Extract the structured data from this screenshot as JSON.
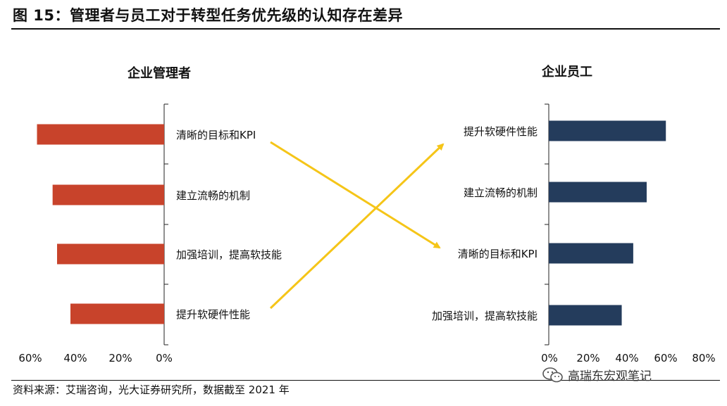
{
  "figure_title": "图 15：管理者与员工对于转型任务优先级的认知存在差异",
  "source_note": "资料来源：艾瑞咨询，光大证券研究所，数据截至 2021 年",
  "watermark": "高瑞东宏观笔记",
  "colors": {
    "manager_bar": "#c8432b",
    "employee_bar": "#243c5c",
    "arrow": "#f5c518",
    "axis": "#222222",
    "tick": "#999999"
  },
  "chart_data": [
    {
      "type": "bar",
      "orientation": "horizontal",
      "direction": "right-to-left",
      "title": "企业管理者",
      "categories": [
        "清晰的目标和KPI",
        "建立流畅的机制",
        "加强培训，提高软技能",
        "提升软硬件性能"
      ],
      "values": [
        57,
        50,
        48,
        42
      ],
      "xlim": [
        0,
        60
      ],
      "xticks": [
        "60%",
        "40%",
        "20%",
        "0%"
      ],
      "xlabel": "",
      "ylabel": ""
    },
    {
      "type": "bar",
      "orientation": "horizontal",
      "direction": "left-to-right",
      "title": "企业员工",
      "categories": [
        "提升软硬件性能",
        "建立流畅的机制",
        "清晰的目标和KPI",
        "加强培训，提高软技能"
      ],
      "values": [
        61,
        51,
        44,
        38
      ],
      "xlim": [
        0,
        80
      ],
      "xticks": [
        "0%",
        "20%",
        "40%",
        "60%",
        "80%"
      ],
      "xlabel": "",
      "ylabel": ""
    }
  ],
  "annotations": [
    {
      "from": "清晰的目标和KPI",
      "from_panel": "企业管理者",
      "to": "清晰的目标和KPI",
      "to_panel": "企业员工"
    },
    {
      "from": "提升软硬件性能",
      "from_panel": "企业管理者",
      "to": "提升软硬件性能",
      "to_panel": "企业员工"
    }
  ]
}
